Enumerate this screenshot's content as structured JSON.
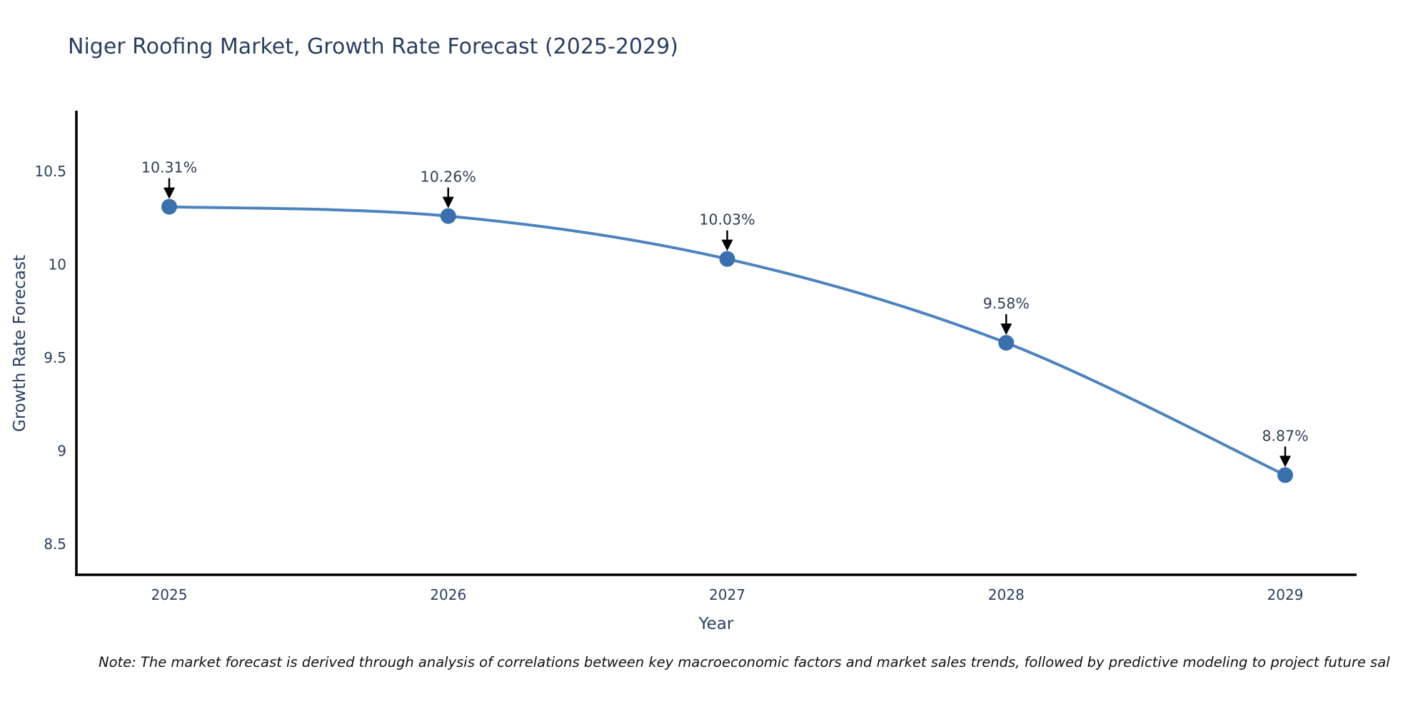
{
  "title": "Niger Roofing Market, Growth Rate Forecast (2025-2029)",
  "note": "Note: The market forecast is derived through analysis of correlations between key macroeconomic factors and market sales trends, followed by predictive modeling to project future sal",
  "chart_data": {
    "type": "line",
    "title": "Niger Roofing Market, Growth Rate Forecast (2025-2029)",
    "xlabel": "Year",
    "ylabel": "Growth Rate Forecast",
    "categories": [
      "2025",
      "2026",
      "2027",
      "2028",
      "2029"
    ],
    "values": [
      10.31,
      10.26,
      10.03,
      9.58,
      8.87
    ],
    "point_labels": [
      "10.31%",
      "10.26%",
      "10.03%",
      "9.58%",
      "8.87%"
    ],
    "y_ticks": [
      8.5,
      9,
      9.5,
      10,
      10.5
    ],
    "ylim": [
      8.33,
      10.81
    ],
    "line_shape": "spline",
    "grid": false,
    "legend_position": "none",
    "colors": {
      "line": "#4c83bf",
      "marker": "#3a70ad",
      "axis": "#000000",
      "text": "#2a3f5f",
      "annotation_text": "#2e3f54",
      "annotation_arrow": "#000000",
      "background": "#ffffff"
    }
  }
}
